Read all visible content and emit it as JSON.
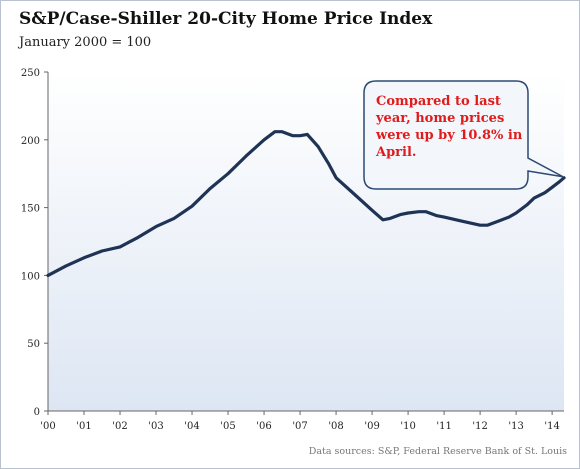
{
  "title": "S&P/Case-Shiller 20-City Home Price Index",
  "subtitle": "January 2000 = 100",
  "source": "Data sources: S&P, Federal Reserve Bank of St. Louis",
  "annotation": "Compared to last year, home prices were up by 10.8% in April.",
  "annotation_lines": [
    "Compared to last",
    "year, home prices",
    "were up by 10.8% in",
    "April."
  ],
  "colors": {
    "line": "#1f3355",
    "plot_background_top": "#ffffff",
    "plot_background_bottom": "#dde6f3",
    "callout_border": "#2b4a73",
    "callout_background": "#f3f6fb",
    "annotation_text": "#e01b1b",
    "axis": "#666666"
  },
  "chart_data": {
    "type": "line",
    "title": "S&P/Case-Shiller 20-City Home Price Index",
    "subtitle": "January 2000 = 100",
    "xlabel": "",
    "ylabel": "",
    "xlim": [
      2000,
      2014.33
    ],
    "ylim": [
      0,
      250
    ],
    "y_ticks": [
      0,
      50,
      100,
      150,
      200,
      250
    ],
    "x_ticks": [
      {
        "value": 2000,
        "label": "'00"
      },
      {
        "value": 2001,
        "label": "'01"
      },
      {
        "value": 2002,
        "label": "'02"
      },
      {
        "value": 2003,
        "label": "'03"
      },
      {
        "value": 2004,
        "label": "'04"
      },
      {
        "value": 2005,
        "label": "'05"
      },
      {
        "value": 2006,
        "label": "'06"
      },
      {
        "value": 2007,
        "label": "'07"
      },
      {
        "value": 2008,
        "label": "'08"
      },
      {
        "value": 2009,
        "label": "'09"
      },
      {
        "value": 2010,
        "label": "'10"
      },
      {
        "value": 2011,
        "label": "'11"
      },
      {
        "value": 2012,
        "label": "'12"
      },
      {
        "value": 2013,
        "label": "'13"
      },
      {
        "value": 2014,
        "label": "'14"
      }
    ],
    "grid": false,
    "legend": "none",
    "series": [
      {
        "x": [
          2000.0,
          2000.5,
          2001.0,
          2001.5,
          2002.0,
          2002.5,
          2003.0,
          2003.5,
          2004.0,
          2004.5,
          2005.0,
          2005.5,
          2006.0,
          2006.3,
          2006.5,
          2006.8,
          2007.0,
          2007.2,
          2007.5,
          2007.8,
          2008.0,
          2008.5,
          2009.0,
          2009.3,
          2009.5,
          2009.8,
          2010.0,
          2010.3,
          2010.5,
          2010.8,
          2011.0,
          2011.5,
          2012.0,
          2012.2,
          2012.5,
          2012.8,
          2013.0,
          2013.3,
          2013.5,
          2013.8,
          2014.0,
          2014.2,
          2014.33
        ],
        "y": [
          100,
          107,
          113,
          118,
          121,
          128,
          136,
          142,
          151,
          164,
          175,
          188,
          200,
          206,
          206,
          203,
          203,
          204,
          195,
          182,
          172,
          160,
          148,
          141,
          142,
          145,
          146,
          147,
          147,
          144,
          143,
          140,
          137,
          137,
          140,
          143,
          146,
          152,
          157,
          161,
          165,
          169,
          172
        ]
      }
    ]
  }
}
